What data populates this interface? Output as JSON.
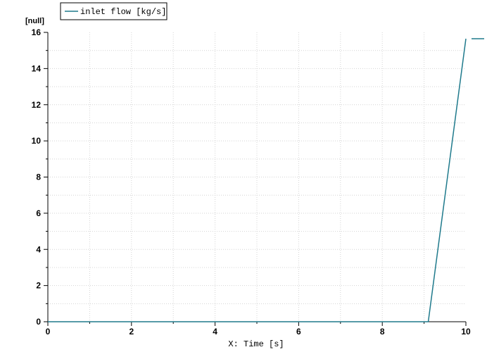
{
  "chart_data": {
    "type": "line",
    "ylabel_unit": "[null]",
    "xlabel": "X: Time [s]",
    "xlim": [
      0,
      10
    ],
    "ylim": [
      0,
      16
    ],
    "x_ticks": [
      0,
      2,
      4,
      6,
      8,
      10
    ],
    "y_ticks": [
      0,
      2,
      4,
      6,
      8,
      10,
      12,
      14,
      16
    ],
    "grid": true,
    "legend_placement": "top-left",
    "series": [
      {
        "name": "inlet flow [kg/s]",
        "color": "#1f7a8c",
        "x": [
          0,
          9.1,
          10
        ],
        "y": [
          0,
          0,
          15.65
        ]
      }
    ],
    "end_marker": {
      "y": 15.65,
      "color": "#1f7a8c"
    }
  }
}
